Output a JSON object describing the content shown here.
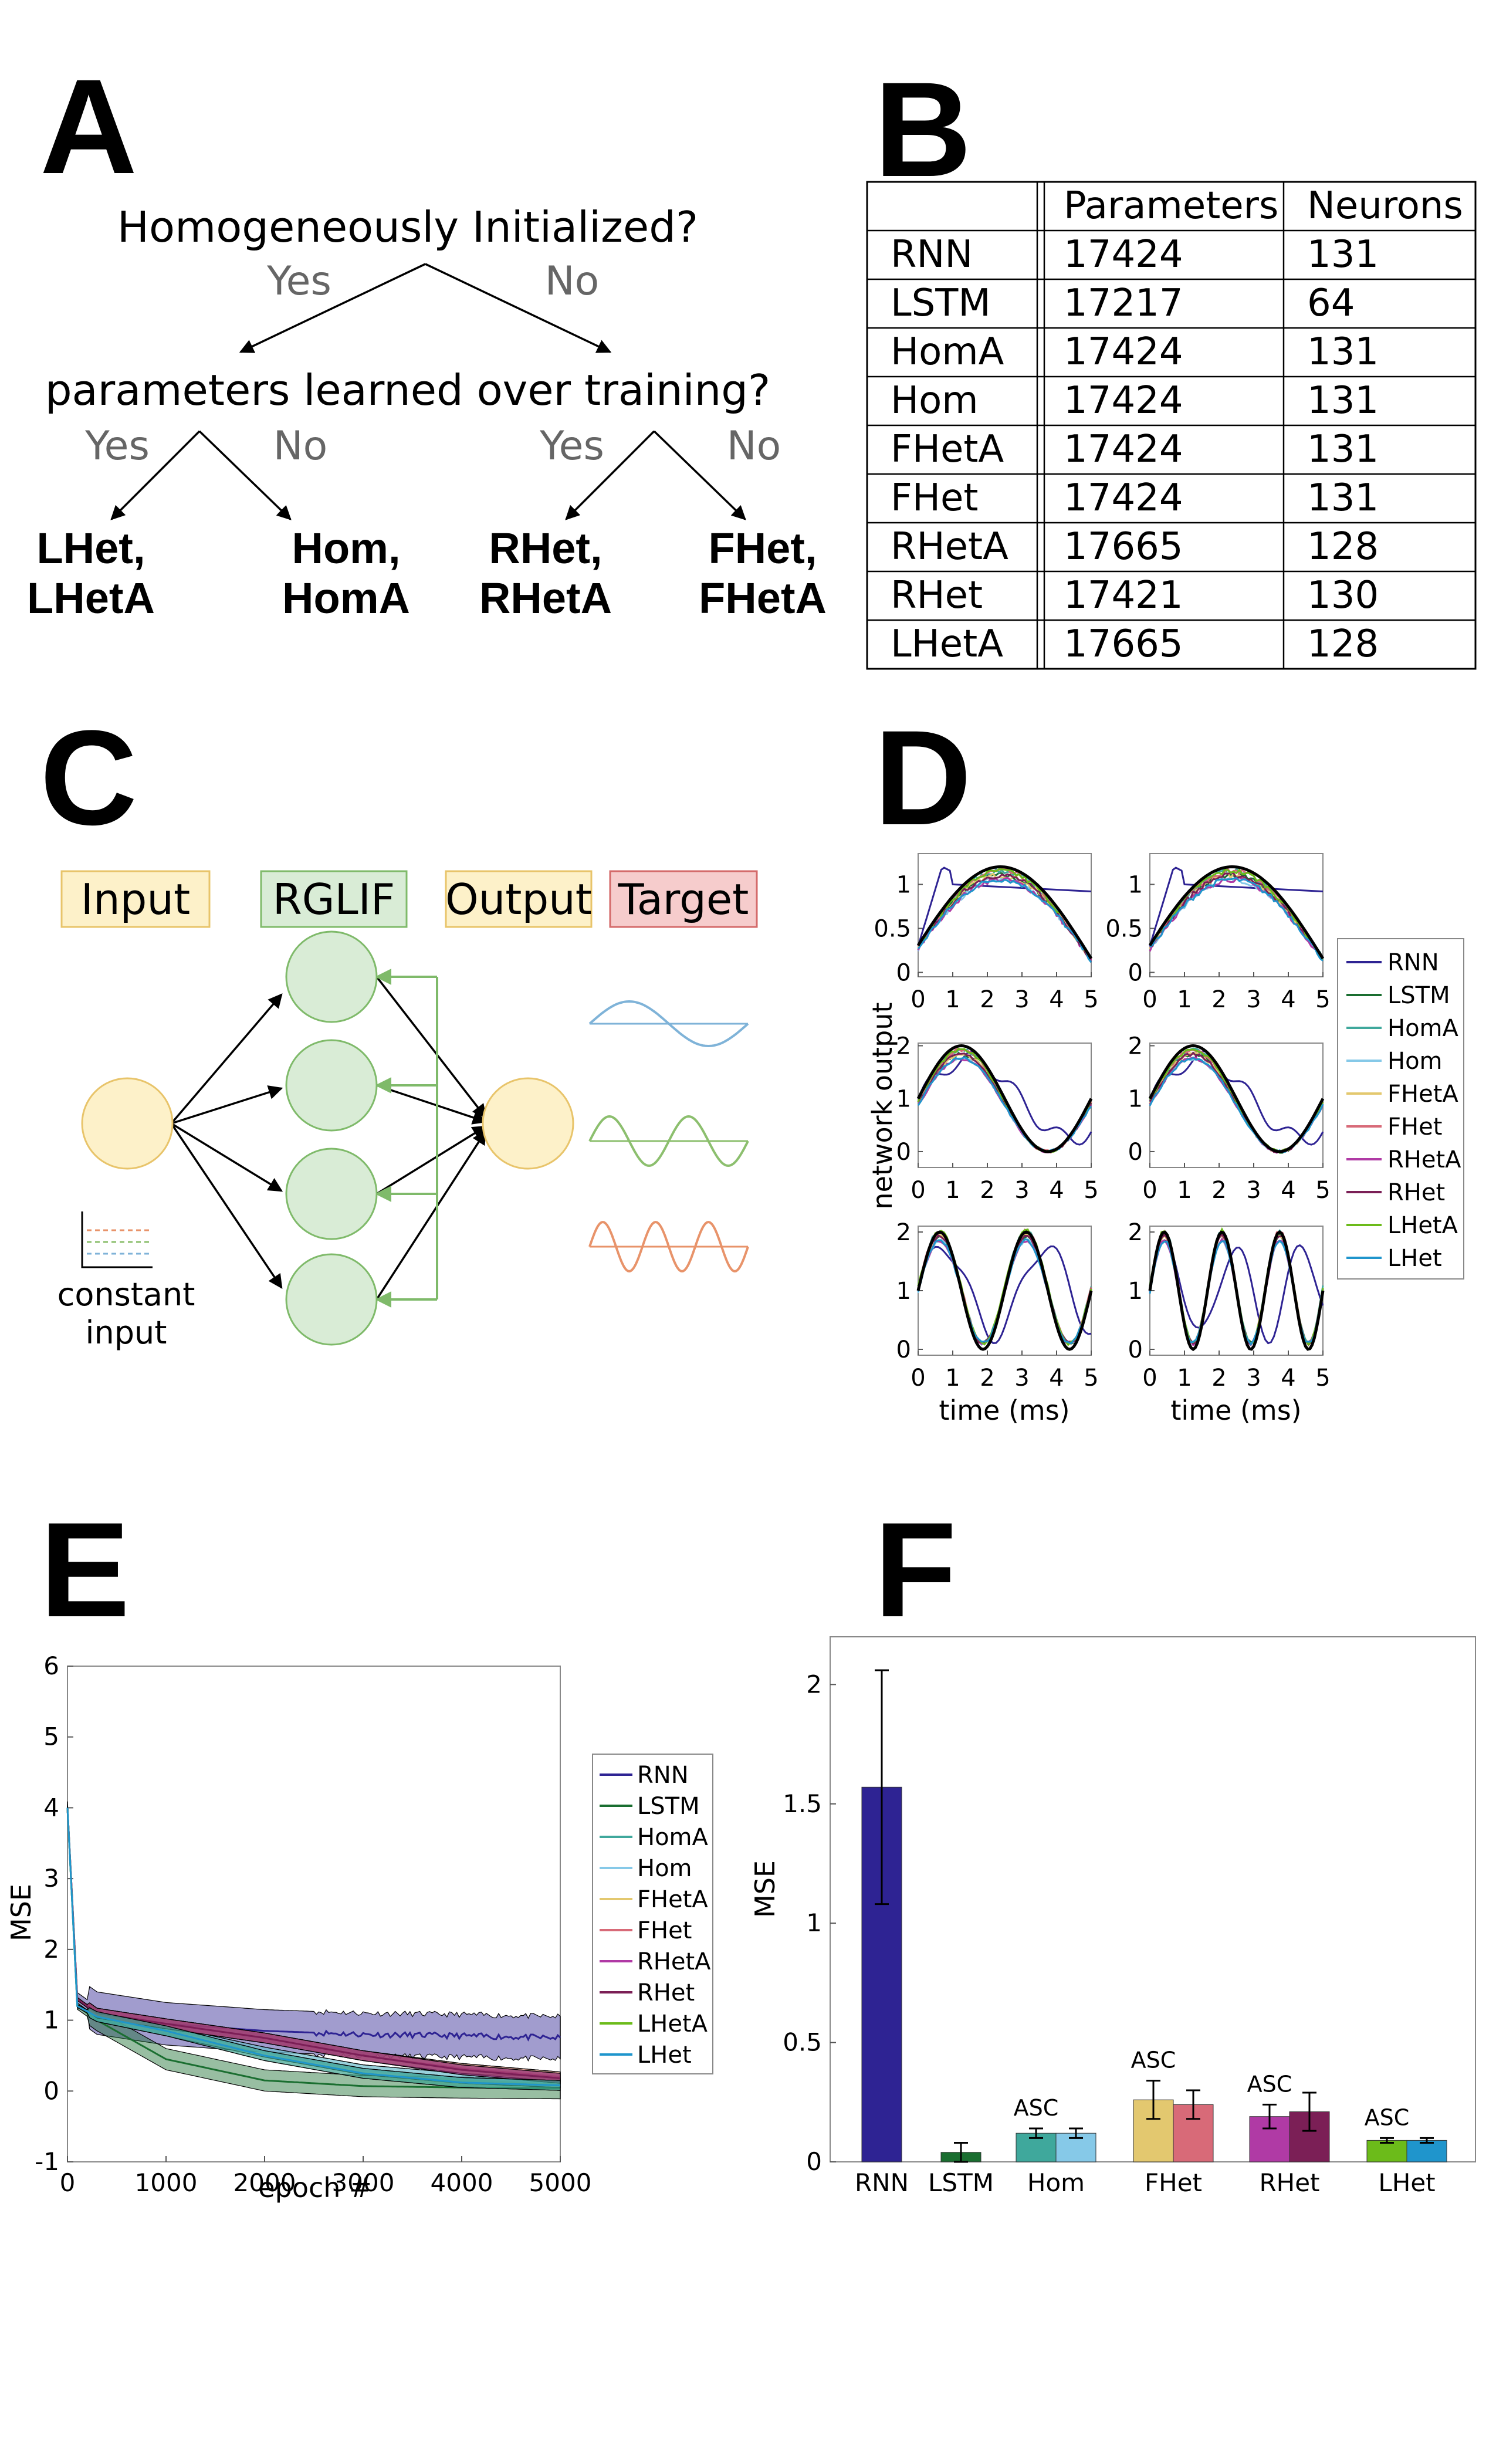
{
  "panels": {
    "A": "A",
    "B": "B",
    "C": "C",
    "D": "D",
    "E": "E",
    "F": "F"
  },
  "panelA": {
    "question1": "Homogeneously Initialized?",
    "question2": "parameters learned over training?",
    "yes": "Yes",
    "no": "No",
    "leaves": [
      {
        "line1": "LHet,",
        "line2": "LHetA"
      },
      {
        "line1": "Hom,",
        "line2": "HomA"
      },
      {
        "line1": "RHet,",
        "line2": "RHetA"
      },
      {
        "line1": "FHet,",
        "line2": "FHetA"
      }
    ]
  },
  "panelB": {
    "headers": [
      "",
      "Parameters",
      "Neurons"
    ],
    "rows": [
      [
        "RNN",
        "17424",
        "131"
      ],
      [
        "LSTM",
        "17217",
        "64"
      ],
      [
        "HomA",
        "17424",
        "131"
      ],
      [
        "Hom",
        "17424",
        "131"
      ],
      [
        "FHetA",
        "17424",
        "131"
      ],
      [
        "FHet",
        "17424",
        "131"
      ],
      [
        "RHetA",
        "17665",
        "128"
      ],
      [
        "RHet",
        "17421",
        "130"
      ],
      [
        "LHetA",
        "17665",
        "128"
      ]
    ]
  },
  "panelC": {
    "input": "Input",
    "rglif": "RGLIF",
    "output": "Output",
    "target": "Target",
    "constant_line1": "constant",
    "constant_line2": "input",
    "colors": {
      "yellow_fill": "#fdf1c9",
      "yellow_stroke": "#e8c46a",
      "green_fill": "#d9ecd6",
      "green_stroke": "#7fba6a",
      "red_fill": "#f6cccc",
      "red_stroke": "#d46a6a",
      "blue_wave": "#7fb3d8",
      "green_wave": "#8cbf6e",
      "orange_wave": "#e8936a"
    }
  },
  "series": [
    {
      "name": "RNN",
      "color": "#2e2393"
    },
    {
      "name": "LSTM",
      "color": "#1a6e30"
    },
    {
      "name": "HomA",
      "color": "#3fa89c"
    },
    {
      "name": "Hom",
      "color": "#86c9e8"
    },
    {
      "name": "FHetA",
      "color": "#e3c86f"
    },
    {
      "name": "FHet",
      "color": "#d86a78"
    },
    {
      "name": "RHetA",
      "color": "#b03aa5"
    },
    {
      "name": "RHet",
      "color": "#7b1f56"
    },
    {
      "name": "LHetA",
      "color": "#6cbb1a"
    },
    {
      "name": "LHet",
      "color": "#1f95cc"
    }
  ],
  "panelD": {
    "ylabel": "network output",
    "xlabel": "time (ms)",
    "xticks": [
      "0",
      "1",
      "2",
      "3",
      "4",
      "5"
    ]
  },
  "chart_data": [
    {
      "type": "line",
      "xlabel": "epoch #",
      "ylabel": "MSE",
      "xlim": [
        0,
        5000
      ],
      "ylim": [
        -1,
        6
      ],
      "xticks": [
        "0",
        "1000",
        "2000",
        "3000",
        "4000",
        "5000"
      ],
      "yticks": [
        "-1",
        "0",
        "1",
        "2",
        "3",
        "4",
        "5",
        "6"
      ],
      "legend": "right",
      "series": [
        {
          "name": "RNN",
          "x": [
            0,
            100,
            300,
            1000,
            2000,
            3000,
            4000,
            5000
          ],
          "values": [
            4.0,
            1.3,
            1.1,
            0.95,
            0.85,
            0.8,
            0.78,
            0.75
          ]
        },
        {
          "name": "LSTM",
          "x": [
            0,
            100,
            300,
            1000,
            2000,
            3000,
            4000,
            5000
          ],
          "values": [
            4.0,
            1.2,
            1.0,
            0.45,
            0.15,
            0.07,
            0.05,
            0.04
          ]
        },
        {
          "name": "HomA",
          "x": [
            0,
            100,
            300,
            1000,
            2000,
            3000,
            4000,
            5000
          ],
          "values": [
            4.0,
            1.2,
            1.05,
            0.85,
            0.55,
            0.3,
            0.18,
            0.12
          ]
        },
        {
          "name": "Hom",
          "x": [
            0,
            100,
            300,
            1000,
            2000,
            3000,
            4000,
            5000
          ],
          "values": [
            4.0,
            1.2,
            1.05,
            0.85,
            0.55,
            0.3,
            0.18,
            0.12
          ]
        },
        {
          "name": "FHetA",
          "x": [
            0,
            100,
            300,
            1000,
            2000,
            3000,
            4000,
            5000
          ],
          "values": [
            4.0,
            1.3,
            1.1,
            0.95,
            0.75,
            0.5,
            0.32,
            0.2
          ]
        },
        {
          "name": "FHet",
          "x": [
            0,
            100,
            300,
            1000,
            2000,
            3000,
            4000,
            5000
          ],
          "values": [
            4.0,
            1.3,
            1.1,
            0.95,
            0.75,
            0.5,
            0.32,
            0.2
          ]
        },
        {
          "name": "RHetA",
          "x": [
            0,
            100,
            300,
            1000,
            2000,
            3000,
            4000,
            5000
          ],
          "values": [
            4.0,
            1.3,
            1.1,
            0.95,
            0.75,
            0.5,
            0.3,
            0.18
          ]
        },
        {
          "name": "RHet",
          "x": [
            0,
            100,
            300,
            1000,
            2000,
            3000,
            4000,
            5000
          ],
          "values": [
            4.0,
            1.3,
            1.1,
            0.95,
            0.75,
            0.5,
            0.3,
            0.18
          ]
        },
        {
          "name": "LHetA",
          "x": [
            0,
            100,
            300,
            1000,
            2000,
            3000,
            4000,
            5000
          ],
          "values": [
            4.0,
            1.2,
            1.05,
            0.85,
            0.5,
            0.25,
            0.12,
            0.08
          ]
        },
        {
          "name": "LHet",
          "x": [
            0,
            100,
            300,
            1000,
            2000,
            3000,
            4000,
            5000
          ],
          "values": [
            4.0,
            1.2,
            1.05,
            0.85,
            0.5,
            0.25,
            0.12,
            0.08
          ]
        }
      ]
    },
    {
      "type": "bar",
      "ylabel": "MSE",
      "ylim": [
        0,
        2.2
      ],
      "yticks": [
        "0",
        "0.5",
        "1",
        "1.5",
        "2"
      ],
      "categories": [
        "RNN",
        "LSTM",
        "Hom",
        "FHet",
        "RHet",
        "LHet"
      ],
      "asc_label": "ASC",
      "bars": [
        {
          "name": "RNN",
          "group": 0,
          "value": 1.57,
          "err": 0.49
        },
        {
          "name": "LSTM",
          "group": 1,
          "value": 0.04,
          "err": 0.04
        },
        {
          "name": "HomA",
          "group": 2,
          "value": 0.12,
          "err": 0.02,
          "asc": true
        },
        {
          "name": "Hom",
          "group": 2,
          "value": 0.12,
          "err": 0.02
        },
        {
          "name": "FHetA",
          "group": 3,
          "value": 0.26,
          "err": 0.08,
          "asc": true
        },
        {
          "name": "FHet",
          "group": 3,
          "value": 0.24,
          "err": 0.06
        },
        {
          "name": "RHetA",
          "group": 4,
          "value": 0.19,
          "err": 0.05,
          "asc": true
        },
        {
          "name": "RHet",
          "group": 4,
          "value": 0.21,
          "err": 0.08
        },
        {
          "name": "LHetA",
          "group": 5,
          "value": 0.09,
          "err": 0.01,
          "asc": true
        },
        {
          "name": "LHet",
          "group": 5,
          "value": 0.09,
          "err": 0.01
        }
      ]
    }
  ]
}
